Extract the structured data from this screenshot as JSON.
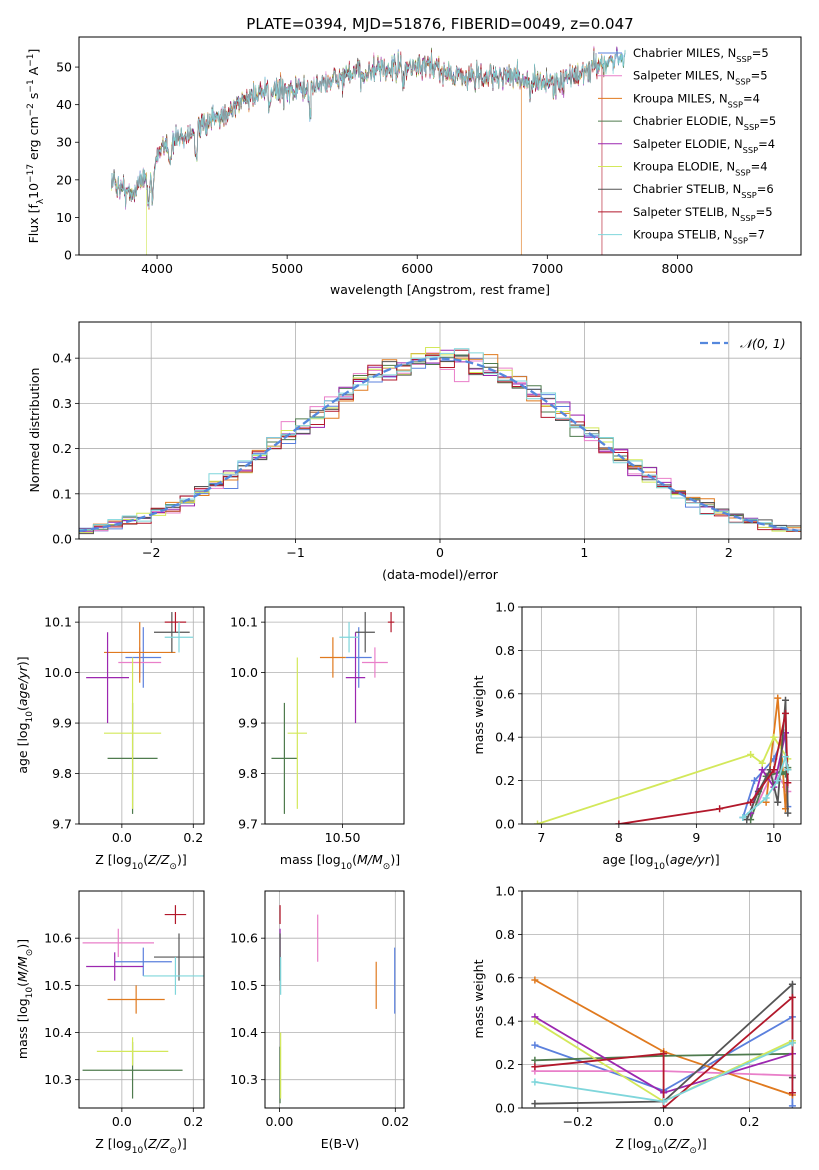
{
  "figure": {
    "title": "PLATE=0394, MJD=51876, FIBERID=0049, z=0.047"
  },
  "models": [
    {
      "name": "Chabrier MILES, N_SSP=5",
      "lib": "Chabrier MILES",
      "n": "5",
      "color": "#5b80dd"
    },
    {
      "name": "Salpeter MILES, N_SSP=5",
      "lib": "Salpeter MILES",
      "n": "5",
      "color": "#e97fc9"
    },
    {
      "name": "Kroupa MILES, N_SSP=4",
      "lib": "Kroupa MILES",
      "n": "4",
      "color": "#e07a1f"
    },
    {
      "name": "Chabrier ELODIE, N_SSP=5",
      "lib": "Chabrier ELODIE",
      "n": "5",
      "color": "#4f7b4e"
    },
    {
      "name": "Salpeter ELODIE, N_SSP=4",
      "lib": "Salpeter ELODIE",
      "n": "4",
      "color": "#9c27b0"
    },
    {
      "name": "Kroupa ELODIE, N_SSP=4",
      "lib": "Kroupa ELODIE",
      "n": "4",
      "color": "#d3e85a"
    },
    {
      "name": "Chabrier STELIB, N_SSP=6",
      "lib": "Chabrier STELIB",
      "n": "6",
      "color": "#555555"
    },
    {
      "name": "Salpeter STELIB, N_SSP=5",
      "lib": "Salpeter STELIB",
      "n": "5",
      "color": "#b2182b"
    },
    {
      "name": "Kroupa STELIB, N_SSP=7",
      "lib": "Kroupa STELIB",
      "n": "7",
      "color": "#7fd6db"
    }
  ],
  "chart_data": [
    {
      "id": "spectrum",
      "type": "line",
      "xlabel": "wavelength [Angstrom, rest frame]",
      "ylabel": "Flux [f_λ 10^-17 erg cm^-2 s^-1 A^-1]",
      "xlim": [
        3400,
        8950
      ],
      "ylim": [
        0,
        58
      ],
      "xticks": [
        4000,
        5000,
        6000,
        7000,
        8000
      ],
      "yticks": [
        0,
        10,
        20,
        30,
        40,
        50
      ],
      "legend": "top-right",
      "continuum": [
        [
          3650,
          20
        ],
        [
          3800,
          16
        ],
        [
          3900,
          21
        ],
        [
          4000,
          26
        ],
        [
          4100,
          30
        ],
        [
          4300,
          33
        ],
        [
          4500,
          37
        ],
        [
          4700,
          42
        ],
        [
          4900,
          44
        ],
        [
          5100,
          44
        ],
        [
          5300,
          46
        ],
        [
          5500,
          48
        ],
        [
          5700,
          49
        ],
        [
          5900,
          50
        ],
        [
          6100,
          50
        ],
        [
          6300,
          48
        ],
        [
          6500,
          47
        ],
        [
          6700,
          48
        ],
        [
          6900,
          46
        ],
        [
          7100,
          46
        ],
        [
          7300,
          49
        ],
        [
          7500,
          52
        ],
        [
          7600,
          53
        ]
      ],
      "absorption": [
        [
          3934,
          12
        ],
        [
          3968,
          10
        ],
        [
          4102,
          5
        ],
        [
          4300,
          7
        ],
        [
          4861,
          5
        ],
        [
          5175,
          8
        ],
        [
          5893,
          5
        ],
        [
          6563,
          3
        ],
        [
          6867,
          4
        ]
      ],
      "emission": [
        [
          6563,
          6
        ]
      ],
      "drops": [
        [
          3920,
          "#d3e85a"
        ],
        [
          6800,
          "#e07a1f"
        ],
        [
          7420,
          "#b2182b"
        ]
      ],
      "model_ends": [
        7600,
        7400,
        7520,
        7600,
        7560,
        7460,
        7480,
        7420,
        7600
      ],
      "grid": false
    },
    {
      "id": "residuals",
      "type": "step",
      "xlabel": "(data-model)/error",
      "ylabel": "Normed distribution",
      "xlim": [
        -2.5,
        2.5
      ],
      "ylim": [
        0,
        0.48
      ],
      "xticks": [
        -2,
        -1,
        0,
        1,
        2
      ],
      "xtick_labels": [
        "−2",
        "−1",
        "0",
        "1",
        "2"
      ],
      "yticks": [
        0,
        0.1,
        0.2,
        0.3,
        0.4
      ],
      "ytick_labels": [
        "0.0",
        "0.1",
        "0.2",
        "0.3",
        "0.4"
      ],
      "bin_width": 0.1,
      "reference": {
        "label": "𝒩(0, 1)",
        "color": "#5588dd"
      },
      "legend": "top-right",
      "grid": true
    },
    {
      "id": "age-vs-Z",
      "type": "errorbar",
      "xlabel": "Z [log10(Z/Z☉)]",
      "ylabel": "age [log10(age/yr)]",
      "xlim": [
        -0.12,
        0.23
      ],
      "ylim": [
        9.7,
        10.13
      ],
      "xticks": [
        0.0,
        0.2
      ],
      "xtick_labels": [
        "0.0",
        "0.2"
      ],
      "yticks": [
        9.7,
        9.8,
        9.9,
        10.0,
        10.1
      ],
      "ytick_labels": [
        "9.7",
        "9.8",
        "9.9",
        "10.0",
        "10.1"
      ],
      "grid": true,
      "points": [
        {
          "x": 0.06,
          "xerr": 0.05,
          "y": 10.03,
          "yerr": 0.06
        },
        {
          "x": 0.05,
          "xerr": 0.06,
          "y": 10.02,
          "yerr": 0.03
        },
        {
          "x": 0.05,
          "xerr": 0.1,
          "y": 10.04,
          "yerr": 0.06
        },
        {
          "x": 0.03,
          "xerr": 0.07,
          "y": 9.83,
          "yerr": 0.11
        },
        {
          "x": -0.04,
          "xerr": 0.06,
          "y": 9.99,
          "yerr": 0.09
        },
        {
          "x": 0.03,
          "xerr": 0.08,
          "y": 9.88,
          "yerr": 0.15
        },
        {
          "x": 0.14,
          "xerr": 0.05,
          "y": 10.08,
          "yerr": 0.04
        },
        {
          "x": 0.15,
          "xerr": 0.03,
          "y": 10.1,
          "yerr": 0.02
        },
        {
          "x": 0.16,
          "xerr": 0.04,
          "y": 10.07,
          "yerr": 0.03
        }
      ]
    },
    {
      "id": "age-vs-mass",
      "type": "errorbar",
      "xlabel": "mass [log10(M/M☉)]",
      "ylabel": "",
      "xlim": [
        10.26,
        10.69
      ],
      "ylim": [
        9.7,
        10.13
      ],
      "xticks": [
        10.25,
        10.5
      ],
      "xtick_labels": [
        "10.25",
        "10.50"
      ],
      "yticks": [
        9.7,
        9.8,
        9.9,
        10.0,
        10.1
      ],
      "ytick_labels": [
        "9.7",
        "9.8",
        "9.9",
        "10.0",
        "10.1"
      ],
      "grid": true,
      "points": [
        {
          "x": 10.55,
          "xerr": 0.04,
          "y": 10.03,
          "yerr": 0.06
        },
        {
          "x": 10.6,
          "xerr": 0.04,
          "y": 10.02,
          "yerr": 0.03
        },
        {
          "x": 10.47,
          "xerr": 0.04,
          "y": 10.03,
          "yerr": 0.04
        },
        {
          "x": 10.32,
          "xerr": 0.04,
          "y": 9.83,
          "yerr": 0.11
        },
        {
          "x": 10.54,
          "xerr": 0.03,
          "y": 9.99,
          "yerr": 0.09
        },
        {
          "x": 10.36,
          "xerr": 0.03,
          "y": 9.88,
          "yerr": 0.15
        },
        {
          "x": 10.57,
          "xerr": 0.03,
          "y": 10.08,
          "yerr": 0.04
        },
        {
          "x": 10.65,
          "xerr": 0.01,
          "y": 10.1,
          "yerr": 0.02
        },
        {
          "x": 10.52,
          "xerr": 0.03,
          "y": 10.07,
          "yerr": 0.03
        }
      ]
    },
    {
      "id": "weight-vs-age",
      "type": "line",
      "xlabel": "age [log10(age/yr)]",
      "ylabel": "mass weight",
      "xlim": [
        6.75,
        10.35
      ],
      "ylim": [
        0,
        1.0
      ],
      "xticks": [
        7,
        8,
        9,
        10
      ],
      "xtick_labels": [
        "7",
        "8",
        "9",
        "10"
      ],
      "yticks": [
        0,
        0.2,
        0.4,
        0.6,
        0.8,
        1.0
      ],
      "ytick_labels": [
        "0.0",
        "0.2",
        "0.4",
        "0.6",
        "0.8",
        "1.0"
      ],
      "grid": true,
      "series": [
        {
          "x": [
            9.6,
            9.75,
            10.0,
            10.15,
            10.18
          ],
          "y": [
            0.03,
            0.2,
            0.3,
            0.42,
            0.08
          ]
        },
        {
          "x": [
            9.8,
            10.0,
            10.15,
            10.18
          ],
          "y": [
            0.1,
            0.25,
            0.17,
            0.15
          ]
        },
        {
          "x": [
            9.9,
            10.05,
            10.15,
            10.18
          ],
          "y": [
            0.1,
            0.58,
            0.07,
            0.25
          ]
        },
        {
          "x": [
            9.7,
            9.9,
            10.1,
            10.15,
            10.18
          ],
          "y": [
            0.02,
            0.22,
            0.24,
            0.23,
            0.26
          ]
        },
        {
          "x": [
            9.7,
            9.85,
            10.0,
            10.15
          ],
          "y": [
            0.05,
            0.25,
            0.17,
            0.42
          ]
        },
        {
          "x": [
            6.95,
            9.7,
            9.85,
            10.0,
            10.18
          ],
          "y": [
            0.0,
            0.32,
            0.28,
            0.4,
            0.3
          ]
        },
        {
          "x": [
            9.65,
            9.8,
            9.95,
            10.05,
            10.15,
            10.18
          ],
          "y": [
            0.02,
            0.15,
            0.25,
            0.1,
            0.57,
            0.05
          ]
        },
        {
          "x": [
            8.0,
            9.3,
            9.7,
            10.0,
            10.15,
            10.18
          ],
          "y": [
            0.0,
            0.07,
            0.1,
            0.25,
            0.51,
            0.19
          ]
        },
        {
          "x": [
            9.6,
            9.9,
            10.05,
            10.15,
            10.18
          ],
          "y": [
            0.03,
            0.12,
            0.2,
            0.31,
            0.25
          ]
        }
      ]
    },
    {
      "id": "mass-vs-Z",
      "type": "errorbar",
      "xlabel": "Z [log10(Z/Z☉)]",
      "ylabel": "mass [log10(M/M☉)]",
      "xlim": [
        -0.12,
        0.23
      ],
      "ylim": [
        10.24,
        10.7
      ],
      "xticks": [
        0.0,
        0.2
      ],
      "xtick_labels": [
        "0.0",
        "0.2"
      ],
      "yticks": [
        10.3,
        10.4,
        10.5,
        10.6
      ],
      "ytick_labels": [
        "10.3",
        "10.4",
        "10.5",
        "10.6"
      ],
      "grid": true,
      "points": [
        {
          "x": 0.06,
          "xerr": 0.08,
          "y": 10.55,
          "yerr": 0.03
        },
        {
          "x": -0.01,
          "xerr": 0.1,
          "y": 10.59,
          "yerr": 0.03
        },
        {
          "x": 0.04,
          "xerr": 0.08,
          "y": 10.47,
          "yerr": 0.03
        },
        {
          "x": 0.03,
          "xerr": 0.14,
          "y": 10.32,
          "yerr": 0.06
        },
        {
          "x": -0.02,
          "xerr": 0.08,
          "y": 10.54,
          "yerr": 0.03
        },
        {
          "x": 0.03,
          "xerr": 0.1,
          "y": 10.36,
          "yerr": 0.03
        },
        {
          "x": 0.16,
          "xerr": 0.07,
          "y": 10.56,
          "yerr": 0.05
        },
        {
          "x": 0.15,
          "xerr": 0.03,
          "y": 10.65,
          "yerr": 0.02
        },
        {
          "x": 0.15,
          "xerr": 0.09,
          "y": 10.52,
          "yerr": 0.04
        }
      ]
    },
    {
      "id": "mass-vs-EBV",
      "type": "errorbar",
      "xlabel": "E(B-V)",
      "ylabel": "",
      "xlim": [
        -0.0025,
        0.0215
      ],
      "ylim": [
        10.24,
        10.7
      ],
      "xticks": [
        0.0,
        0.02
      ],
      "xtick_labels": [
        "0.00",
        "0.02"
      ],
      "yticks": [
        10.3,
        10.4,
        10.5,
        10.6
      ],
      "ytick_labels": [
        "10.3",
        "10.4",
        "10.5",
        "10.6"
      ],
      "grid": true,
      "points": [
        {
          "x": 0.0199,
          "xerr": 0,
          "y": 10.51,
          "yerr": 0.07
        },
        {
          "x": 0.0066,
          "xerr": 0,
          "y": 10.6,
          "yerr": 0.05
        },
        {
          "x": 0.0167,
          "xerr": 0,
          "y": 10.5,
          "yerr": 0.05
        },
        {
          "x": 0.0001,
          "xerr": 0,
          "y": 10.31,
          "yerr": 0.06
        },
        {
          "x": 0.0001,
          "xerr": 0,
          "y": 10.58,
          "yerr": 0.04
        },
        {
          "x": 0.0002,
          "xerr": 0,
          "y": 10.33,
          "yerr": 0.07
        },
        {
          "x": 0.0001,
          "xerr": 0,
          "y": 10.56,
          "yerr": 0.05
        },
        {
          "x": 0.0001,
          "xerr": 0,
          "y": 10.65,
          "yerr": 0.02
        },
        {
          "x": 0.0002,
          "xerr": 0,
          "y": 10.52,
          "yerr": 0.04
        }
      ]
    },
    {
      "id": "weight-vs-Z",
      "type": "line",
      "xlabel": "Z [log10(Z/Z☉)]",
      "ylabel": "mass weight",
      "xlim": [
        -0.33,
        0.32
      ],
      "ylim": [
        0,
        1.0
      ],
      "xticks": [
        -0.2,
        0.0,
        0.2
      ],
      "xtick_labels": [
        "−0.2",
        "0.0",
        "0.2"
      ],
      "yticks": [
        0,
        0.2,
        0.4,
        0.6,
        0.8,
        1.0
      ],
      "ytick_labels": [
        "0.0",
        "0.2",
        "0.4",
        "0.6",
        "0.8",
        "1.0"
      ],
      "grid": true,
      "series": [
        {
          "x": [
            -0.3,
            0.0,
            0.3,
            0.3
          ],
          "y": [
            0.29,
            0.08,
            0.42,
            0.01
          ]
        },
        {
          "x": [
            -0.3,
            0.0,
            0.3
          ],
          "y": [
            0.17,
            0.17,
            0.15
          ]
        },
        {
          "x": [
            -0.3,
            0.0,
            0.3
          ],
          "y": [
            0.59,
            0.26,
            0.06
          ]
        },
        {
          "x": [
            -0.3,
            0.0,
            0.3
          ],
          "y": [
            0.22,
            0.24,
            0.25
          ]
        },
        {
          "x": [
            -0.3,
            0.0,
            0.3
          ],
          "y": [
            0.42,
            0.07,
            0.25
          ]
        },
        {
          "x": [
            -0.3,
            0.0,
            0.3,
            0.3
          ],
          "y": [
            0.4,
            0.03,
            0.31,
            0.3
          ]
        },
        {
          "x": [
            -0.3,
            0.0,
            0.3,
            0.3
          ],
          "y": [
            0.02,
            0.03,
            0.57,
            0.14
          ]
        },
        {
          "x": [
            -0.3,
            0.0,
            0.0,
            0.3,
            0.3
          ],
          "y": [
            0.19,
            0.25,
            0.0,
            0.51,
            0.07
          ]
        },
        {
          "x": [
            -0.3,
            0.0,
            0.3
          ],
          "y": [
            0.12,
            0.03,
            0.3
          ]
        }
      ]
    }
  ]
}
